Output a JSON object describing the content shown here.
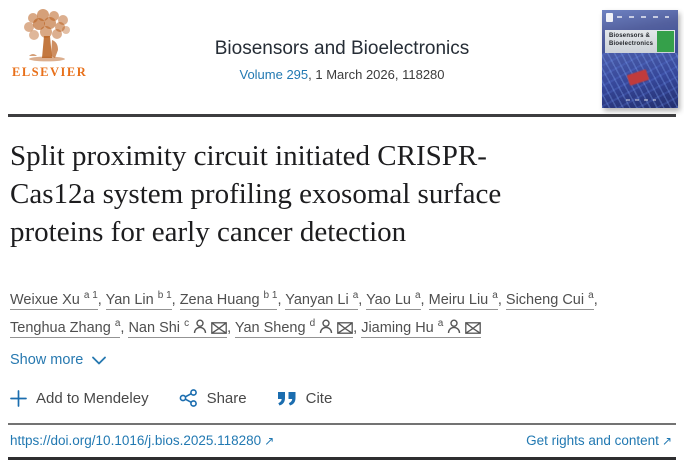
{
  "header": {
    "publisher_wordmark": "ELSEVIER",
    "journal_title": "Biosensors and Bioelectronics",
    "volume_link": "Volume 295",
    "issue_rest": ", 1 March 2026, 118280",
    "cover": {
      "line1": "Biosensors &",
      "line2": "Bioelectronics"
    }
  },
  "article": {
    "title": "Split proximity circuit initiated CRISPR-Cas12a system profiling exosomal surface proteins for early cancer detection",
    "title_lines": [
      "Split proximity circuit initiated CRISPR-",
      "Cas12a system profiling exosomal surface",
      "proteins for early cancer detection"
    ],
    "authors": [
      {
        "name": "Weixue Xu",
        "sup": "a 1",
        "person": false,
        "mail": false
      },
      {
        "name": "Yan Lin",
        "sup": "b 1",
        "person": false,
        "mail": false
      },
      {
        "name": "Zena Huang",
        "sup": "b 1",
        "person": false,
        "mail": false
      },
      {
        "name": "Yanyan Li",
        "sup": "a",
        "person": false,
        "mail": false
      },
      {
        "name": "Yao Lu",
        "sup": "a",
        "person": false,
        "mail": false
      },
      {
        "name": "Meiru Liu",
        "sup": "a",
        "person": false,
        "mail": false
      },
      {
        "name": "Sicheng Cui",
        "sup": "a",
        "person": false,
        "mail": false
      },
      {
        "name": "Tenghua Zhang",
        "sup": "a",
        "person": false,
        "mail": false
      },
      {
        "name": "Nan Shi",
        "sup": "c",
        "person": true,
        "mail": true
      },
      {
        "name": "Yan Sheng",
        "sup": "d",
        "person": true,
        "mail": true
      },
      {
        "name": "Jiaming Hu",
        "sup": "a",
        "person": true,
        "mail": true
      }
    ],
    "author_separator": ", ",
    "show_more_label": "Show more"
  },
  "actions": {
    "mendeley_label": "Add to Mendeley",
    "share_label": "Share",
    "cite_label": "Cite"
  },
  "footer": {
    "doi_link": "https://doi.org/10.1016/j.bios.2025.118280",
    "rights_label": "Get rights and content"
  },
  "icons": {
    "external_arrow": "↗"
  },
  "colors": {
    "link_blue": "#2279b2",
    "action_icon_blue": "#1b6daf",
    "elsevier_orange": "#e8701a",
    "title_dark": "#1d1d1f",
    "author_gray": "#4f4f4f",
    "cover_green": "#35a04a",
    "cover_chip_red": "#c03b3c"
  }
}
